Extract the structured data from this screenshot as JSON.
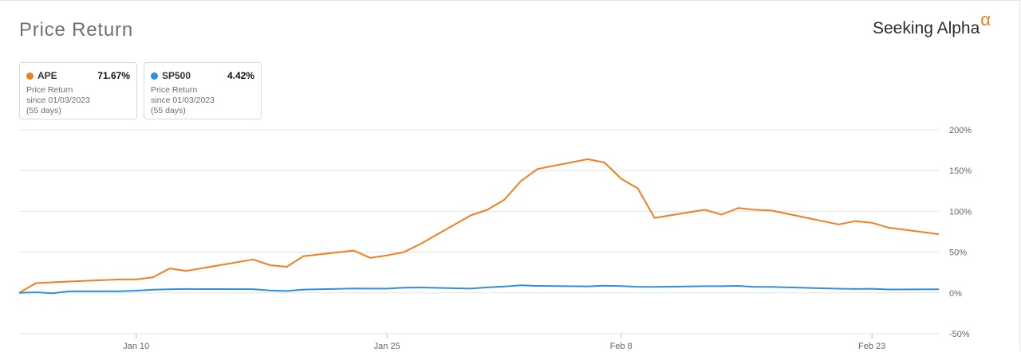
{
  "header": {
    "title": "Price Return",
    "brand_name": "Seeking Alpha",
    "brand_mark": "α"
  },
  "legend": [
    {
      "ticker": "APE",
      "value": "71.67%",
      "label": "Price Return",
      "since": "since 01/03/2023",
      "days": "(55 days)",
      "color": "#f27e1e"
    },
    {
      "ticker": "SP500",
      "value": "4.42%",
      "label": "Price Return",
      "since": "since 01/03/2023",
      "days": "(55 days)",
      "color": "#2f8fe0"
    }
  ],
  "chart_data": {
    "type": "line",
    "title": "Price Return",
    "x_unit": "date",
    "x_ticks": [
      "Jan 10",
      "Jan 25",
      "Feb 8",
      "Feb 23"
    ],
    "y_ticks": [
      "200%",
      "150%",
      "100%",
      "50%",
      "0%",
      "-50%"
    ],
    "ylim": [
      -50,
      200
    ],
    "grid": true,
    "series": [
      {
        "name": "APE",
        "color": "#f27e1e",
        "x": [
          "2023-01-03",
          "2023-01-04",
          "2023-01-05",
          "2023-01-06",
          "2023-01-09",
          "2023-01-10",
          "2023-01-11",
          "2023-01-12",
          "2023-01-13",
          "2023-01-17",
          "2023-01-18",
          "2023-01-19",
          "2023-01-20",
          "2023-01-23",
          "2023-01-24",
          "2023-01-25",
          "2023-01-26",
          "2023-01-27",
          "2023-01-30",
          "2023-01-31",
          "2023-02-01",
          "2023-02-02",
          "2023-02-03",
          "2023-02-06",
          "2023-02-07",
          "2023-02-08",
          "2023-02-09",
          "2023-02-10",
          "2023-02-13",
          "2023-02-14",
          "2023-02-15",
          "2023-02-16",
          "2023-02-17",
          "2023-02-21",
          "2023-02-22",
          "2023-02-23",
          "2023-02-24",
          "2023-02-27"
        ],
        "values": [
          0,
          12,
          13,
          14,
          16.5,
          16.5,
          19,
          30,
          27,
          41,
          34,
          32,
          45,
          52,
          43,
          46,
          50,
          60,
          95,
          102,
          114,
          137,
          152,
          164,
          160,
          140,
          128,
          92,
          102,
          96,
          104,
          102,
          101,
          84,
          88,
          86,
          80,
          72
        ]
      },
      {
        "name": "SP500",
        "color": "#2f8fe0",
        "x": [
          "2023-01-03",
          "2023-01-04",
          "2023-01-05",
          "2023-01-06",
          "2023-01-09",
          "2023-01-10",
          "2023-01-11",
          "2023-01-12",
          "2023-01-13",
          "2023-01-17",
          "2023-01-18",
          "2023-01-19",
          "2023-01-20",
          "2023-01-23",
          "2023-01-24",
          "2023-01-25",
          "2023-01-26",
          "2023-01-27",
          "2023-01-30",
          "2023-01-31",
          "2023-02-01",
          "2023-02-02",
          "2023-02-03",
          "2023-02-06",
          "2023-02-07",
          "2023-02-08",
          "2023-02-09",
          "2023-02-10",
          "2023-02-13",
          "2023-02-14",
          "2023-02-15",
          "2023-02-16",
          "2023-02-17",
          "2023-02-21",
          "2023-02-22",
          "2023-02-23",
          "2023-02-24",
          "2023-02-27"
        ],
        "values": [
          0,
          0.8,
          -0.4,
          2.0,
          2.0,
          2.7,
          4.0,
          4.4,
          4.8,
          4.6,
          3.0,
          2.3,
          4.1,
          5.4,
          5.3,
          5.3,
          6.3,
          6.6,
          5.3,
          6.7,
          7.8,
          9.3,
          8.6,
          8.0,
          8.8,
          8.3,
          7.5,
          7.3,
          8.2,
          8.2,
          8.6,
          7.3,
          7.3,
          5.2,
          4.8,
          5.1,
          4.2,
          4.42
        ]
      }
    ]
  }
}
